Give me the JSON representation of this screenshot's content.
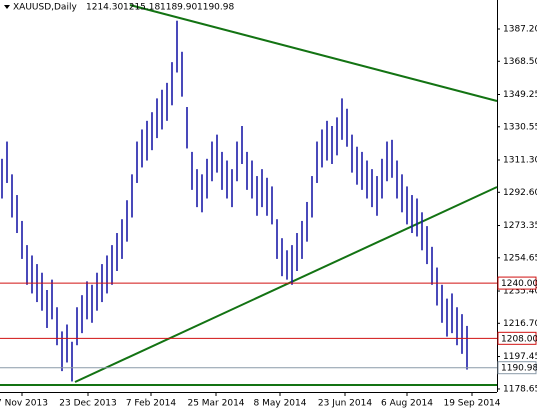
{
  "chart_data": {
    "type": "ohlc",
    "symbol": "XAUUSD,Daily",
    "quote": [
      {
        "value": 1214.3,
        "label": "1214.30"
      },
      {
        "value": 1215.18,
        "label": "1215.18"
      },
      {
        "value": 1189.9,
        "label": "1189.90"
      },
      {
        "value": 1190.98,
        "label": "1190.98"
      }
    ],
    "color": "#1c1ca8",
    "highs": [
      1312,
      1322,
      1303,
      1291,
      1276,
      1262,
      1256,
      1251,
      1246,
      1236,
      1242,
      1226,
      1212,
      1216,
      1206,
      1226,
      1233,
      1241,
      1239,
      1246,
      1251,
      1256,
      1262,
      1269,
      1277,
      1288,
      1303,
      1322,
      1329,
      1334,
      1339,
      1347,
      1352,
      1356,
      1368,
      1392,
      1374,
      1342,
      1316,
      1306,
      1303,
      1312,
      1322,
      1326,
      1316,
      1311,
      1306,
      1322,
      1331,
      1316,
      1311,
      1302,
      1306,
      1301,
      1296,
      1277,
      1266,
      1259,
      1262,
      1269,
      1276,
      1287,
      1302,
      1322,
      1329,
      1334,
      1331,
      1336,
      1347,
      1341,
      1326,
      1319,
      1316,
      1311,
      1306,
      1302,
      1312,
      1322,
      1323,
      1311,
      1303,
      1296,
      1291,
      1289,
      1281,
      1273,
      1261,
      1249,
      1239,
      1231,
      1234,
      1226,
      1222,
      1215.18
    ],
    "lows": [
      1289,
      1298,
      1278,
      1269,
      1254,
      1239,
      1234,
      1229,
      1224,
      1214,
      1219,
      1204,
      1189,
      1194,
      1183,
      1204,
      1211,
      1219,
      1217,
      1224,
      1229,
      1234,
      1239,
      1247,
      1254,
      1264,
      1278,
      1298,
      1307,
      1311,
      1317,
      1324,
      1329,
      1334,
      1343,
      1362,
      1348,
      1318,
      1294,
      1284,
      1281,
      1289,
      1299,
      1304,
      1294,
      1289,
      1284,
      1299,
      1309,
      1294,
      1289,
      1279,
      1284,
      1279,
      1274,
      1254,
      1244,
      1242,
      1239,
      1247,
      1254,
      1264,
      1278,
      1298,
      1307,
      1311,
      1309,
      1314,
      1323,
      1319,
      1304,
      1297,
      1294,
      1289,
      1284,
      1279,
      1289,
      1299,
      1301,
      1289,
      1281,
      1274,
      1269,
      1267,
      1259,
      1251,
      1239,
      1227,
      1217,
      1209,
      1211,
      1204,
      1199,
      1189.9
    ],
    "xlim": [
      -0.4,
      99
    ],
    "xticks": [
      {
        "value": 4,
        "label": "7 Nov 2013"
      },
      {
        "value": 17.2,
        "label": "23 Dec 2013"
      },
      {
        "value": 29.8,
        "label": "7 Feb 2014"
      },
      {
        "value": 42.8,
        "label": "25 Mar 2014"
      },
      {
        "value": 55.6,
        "label": "8 May 2014"
      },
      {
        "value": 68.6,
        "label": "23 Jun 2014"
      },
      {
        "value": 81,
        "label": "6 Aug 2014"
      },
      {
        "value": 94,
        "label": "19 Sep 2014"
      }
    ],
    "ylim": [
      1176.9,
      1404.0
    ],
    "yticks": [
      {
        "value": 1387.2,
        "label": "1387.20"
      },
      {
        "value": 1368.5,
        "label": "1368.50"
      },
      {
        "value": 1349.25,
        "label": "1349.25"
      },
      {
        "value": 1330.55,
        "label": "1330.55"
      },
      {
        "value": 1311.3,
        "label": "1311.30"
      },
      {
        "value": 1292.6,
        "label": "1292.60"
      },
      {
        "value": 1273.35,
        "label": "1273.35"
      },
      {
        "value": 1254.65,
        "label": "1254.65"
      },
      {
        "value": 1235.4,
        "label": "1235.40"
      },
      {
        "value": 1216.7,
        "label": "1216.70"
      },
      {
        "value": 1197.45,
        "label": "1197.45"
      },
      {
        "value": 1178.65,
        "label": "1178.65"
      }
    ],
    "levels": [
      {
        "value": 1240,
        "label": "1240.00",
        "color": "#d01010"
      },
      {
        "value": 1208,
        "label": "1208.00",
        "color": "#d01010"
      }
    ],
    "current": {
      "value": 1190.98,
      "label": "1190.98",
      "color": "#8a9aa8"
    }
  }
}
